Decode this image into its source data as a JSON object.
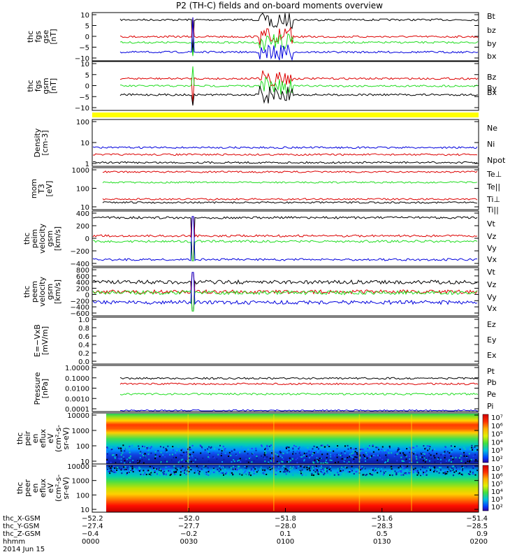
{
  "title": "P2 (TH-C) fields and on-board moments overview",
  "colors": {
    "black": "#000000",
    "red": "#dd0000",
    "green": "#22dd22",
    "blue": "#0000dd",
    "yellow": "#ffff00"
  },
  "chart_data": [
    {
      "type": "line",
      "ylabel": [
        "thc",
        "fgs",
        "gse",
        "[nT]"
      ],
      "ylim": [
        -10,
        10
      ],
      "ticks": [
        "10",
        "5",
        "0",
        "−5",
        "−10"
      ],
      "series": [
        {
          "name": "Bt",
          "color": "black"
        },
        {
          "name": "bz",
          "color": "red"
        },
        {
          "name": "by",
          "color": "green"
        },
        {
          "name": "bx",
          "color": "blue"
        }
      ]
    },
    {
      "type": "line",
      "ylabel": [
        "thc",
        "fgs",
        "gsm",
        "[nT]"
      ],
      "ylim": [
        -12,
        12
      ],
      "ticks": [
        "10",
        "5",
        "0",
        "−5",
        "−10"
      ],
      "series": [
        {
          "name": "Bz",
          "color": "red"
        },
        {
          "name": "By",
          "color": "green"
        },
        {
          "name": "Bx",
          "color": "black"
        }
      ]
    },
    {
      "type": "line",
      "ylabel": [
        "Density",
        "[cm-3]"
      ],
      "scale": "log",
      "ticks": [
        "100",
        "10",
        "1"
      ],
      "series": [
        {
          "name": "Ne",
          "color": "red"
        },
        {
          "name": "Ni",
          "color": "black"
        },
        {
          "name": "Npot",
          "color": "blue"
        }
      ]
    },
    {
      "type": "line",
      "ylabel": [
        "mom",
        "T3",
        "[eV]"
      ],
      "scale": "log",
      "ticks": [
        "1000",
        "100",
        "10"
      ],
      "series": [
        {
          "name": "Te⊥",
          "color": "red"
        },
        {
          "name": "Te||",
          "color": "black"
        },
        {
          "name": "Ti⊥",
          "color": "red"
        },
        {
          "name": "Ti||",
          "color": "green"
        }
      ]
    },
    {
      "type": "line",
      "ylabel": [
        "thc",
        "peim",
        "velocity",
        "gsm",
        "[km/s]"
      ],
      "ylim": [
        -450,
        450
      ],
      "ticks": [
        "400",
        "200",
        "0",
        "−200",
        "−400"
      ],
      "series": [
        {
          "name": "Vt",
          "color": "black"
        },
        {
          "name": "Vz",
          "color": "red"
        },
        {
          "name": "Vy",
          "color": "green"
        },
        {
          "name": "Vx",
          "color": "blue"
        }
      ]
    },
    {
      "type": "line",
      "ylabel": [
        "thc",
        "peem",
        "velocity",
        "gsm",
        "[km/s]"
      ],
      "ylim": [
        -700,
        700
      ],
      "ticks": [
        "800",
        "600",
        "400",
        "200",
        "0",
        "−200",
        "−400",
        "−600"
      ],
      "series": [
        {
          "name": "Vt",
          "color": "black"
        },
        {
          "name": "Vz",
          "color": "red"
        },
        {
          "name": "Vy",
          "color": "green"
        },
        {
          "name": "Vx",
          "color": "blue"
        }
      ]
    },
    {
      "type": "line",
      "ylabel": [
        "E=−VxB",
        "[mV/m]"
      ],
      "ylim": [
        0,
        1
      ],
      "ticks": [
        "1.0",
        "0.8",
        "0.6",
        "0.4",
        "0.2",
        "0.0"
      ],
      "series": [
        {
          "name": "Ez",
          "color": "red"
        },
        {
          "name": "Ey",
          "color": "green"
        },
        {
          "name": "Ex",
          "color": "blue"
        }
      ]
    },
    {
      "type": "line",
      "ylabel": [
        "Pressure",
        "[nPa]"
      ],
      "scale": "log",
      "ticks": [
        "1.0000",
        "0.1000",
        "0.0100",
        "0.0010",
        "0.0001"
      ],
      "series": [
        {
          "name": "Pt",
          "color": "black"
        },
        {
          "name": "Pb",
          "color": "red"
        },
        {
          "name": "Pe",
          "color": "green"
        },
        {
          "name": "Pi",
          "color": "blue"
        }
      ]
    },
    {
      "type": "heatmap",
      "ylabel": [
        "thc",
        "peir",
        "en",
        "eflux",
        "eV",
        "(cm²-s-",
        "sr-eV)"
      ],
      "scale": "log",
      "ticks": [
        "10000",
        "1000",
        "100",
        "10"
      ],
      "colorbar": [
        "10⁷",
        "10⁶",
        "10⁵",
        "10⁴",
        "10³",
        "10²"
      ]
    },
    {
      "type": "heatmap",
      "ylabel": [
        "thc",
        "peer",
        "en",
        "eflux",
        "eV",
        "(cm²-s-",
        "sr-eV)"
      ],
      "scale": "log",
      "ticks": [
        "10000",
        "1000",
        "100",
        "10"
      ],
      "colorbar": [
        "10⁷",
        "10⁶",
        "10⁵",
        "10⁴",
        "10³",
        "10²"
      ]
    }
  ],
  "xaxis": {
    "row_labels": [
      "thc_X-GSM",
      "thc_Y-GSM",
      "thc_Z-GSM",
      "hhmm",
      "2014 Jun 15"
    ],
    "columns": [
      [
        "−52.2",
        "−27.4",
        "−0.4",
        "0000"
      ],
      [
        "−52.0",
        "−27.7",
        "−0.2",
        "0030"
      ],
      [
        "−51.8",
        "−28.0",
        "0.1",
        "0100"
      ],
      [
        "−51.6",
        "−28.3",
        "0.5",
        "0130"
      ],
      [
        "−51.4",
        "−28.5",
        "0.9",
        "0200"
      ]
    ]
  }
}
